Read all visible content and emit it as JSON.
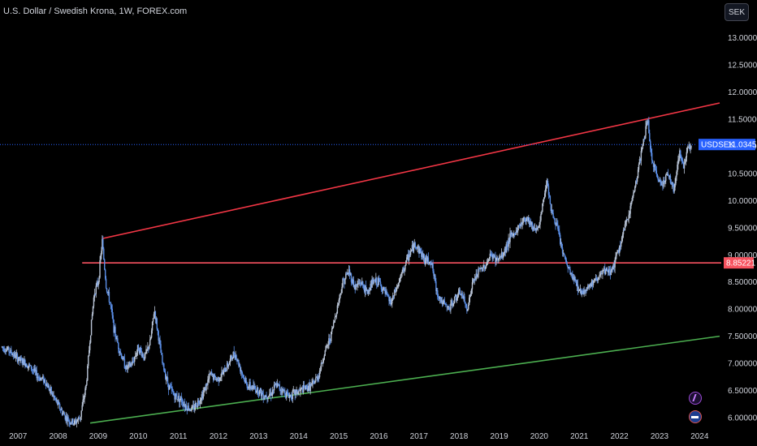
{
  "header": {
    "title": "U.S. Dollar / Swedish Krona, 1W, FOREX.com",
    "scale_label": "SEK"
  },
  "price_tags": {
    "symbol": "USDSEK",
    "last_price": "11.03451",
    "level": "8.85221"
  },
  "colors": {
    "background": "#000000",
    "candles": "#5b8fe8",
    "candles_alt": "#b9c4d6",
    "resistance_line": "#f23645",
    "horizontal_level": "#f7525f",
    "support_line": "#4caf50",
    "last_price_tag": "#2962ff",
    "level_tag": "#f7525f"
  },
  "icons": [
    "flash-icon",
    "flag-icon"
  ],
  "chart_data": {
    "type": "line",
    "title": "U.S. Dollar / Swedish Krona, 1W, FOREX.com",
    "xlabel": "",
    "ylabel": "",
    "x_ticks": [
      "2007",
      "2008",
      "2009",
      "2010",
      "2011",
      "2012",
      "2013",
      "2014",
      "2015",
      "2016",
      "2017",
      "2018",
      "2019",
      "2020",
      "2021",
      "2022",
      "2023",
      "2024"
    ],
    "y_ticks": [
      "13.00000",
      "12.50000",
      "12.00000",
      "11.50000",
      "11.00000",
      "10.50000",
      "10.00000",
      "9.50000",
      "9.00000",
      "8.50000",
      "8.00000",
      "7.50000",
      "7.00000",
      "6.50000",
      "6.00000"
    ],
    "xlim": [
      2006.55,
      2024.5
    ],
    "ylim": [
      5.85,
      13.25
    ],
    "grid": false,
    "series": [
      {
        "x": [
          2006.6,
          2006.75,
          2006.9,
          2007.05,
          2007.2,
          2007.35,
          2007.5,
          2007.65,
          2007.8,
          2007.95,
          2008.1,
          2008.25,
          2008.4,
          2008.55,
          2008.7,
          2008.8,
          2008.9,
          2009.0,
          2009.1,
          2009.2,
          2009.3,
          2009.4,
          2009.55,
          2009.7,
          2009.85,
          2010.0,
          2010.15,
          2010.3,
          2010.4,
          2010.5,
          2010.6,
          2010.75,
          2010.9,
          2011.05,
          2011.2,
          2011.35,
          2011.5,
          2011.65,
          2011.8,
          2011.95,
          2012.1,
          2012.25,
          2012.4,
          2012.55,
          2012.7,
          2012.85,
          2013.0,
          2013.15,
          2013.3,
          2013.45,
          2013.6,
          2013.75,
          2013.9,
          2014.05,
          2014.2,
          2014.35,
          2014.5,
          2014.65,
          2014.8,
          2014.95,
          2015.1,
          2015.25,
          2015.4,
          2015.55,
          2015.7,
          2015.85,
          2016.0,
          2016.15,
          2016.3,
          2016.45,
          2016.6,
          2016.75,
          2016.9,
          2017.0,
          2017.15,
          2017.3,
          2017.45,
          2017.6,
          2017.75,
          2017.9,
          2018.05,
          2018.2,
          2018.35,
          2018.5,
          2018.65,
          2018.8,
          2018.95,
          2019.1,
          2019.25,
          2019.4,
          2019.55,
          2019.7,
          2019.85,
          2020.0,
          2020.1,
          2020.2,
          2020.3,
          2020.45,
          2020.6,
          2020.75,
          2020.9,
          2021.05,
          2021.2,
          2021.35,
          2021.5,
          2021.65,
          2021.8,
          2021.95,
          2022.1,
          2022.25,
          2022.4,
          2022.55,
          2022.7,
          2022.8,
          2022.9,
          2023.05,
          2023.2,
          2023.35,
          2023.5,
          2023.6,
          2023.7,
          2023.8
        ],
        "values": [
          7.3,
          7.25,
          7.15,
          7.05,
          7.0,
          6.9,
          6.75,
          6.7,
          6.5,
          6.3,
          6.1,
          5.95,
          5.9,
          6.0,
          6.6,
          7.5,
          8.3,
          8.5,
          9.25,
          8.4,
          8.1,
          7.6,
          7.2,
          6.9,
          7.0,
          7.3,
          7.1,
          7.4,
          8.0,
          7.5,
          7.0,
          6.6,
          6.4,
          6.35,
          6.2,
          6.15,
          6.3,
          6.5,
          6.8,
          6.7,
          6.8,
          7.0,
          7.2,
          6.9,
          6.6,
          6.55,
          6.5,
          6.4,
          6.45,
          6.6,
          6.5,
          6.4,
          6.45,
          6.5,
          6.55,
          6.6,
          6.8,
          7.2,
          7.5,
          8.0,
          8.5,
          8.7,
          8.4,
          8.5,
          8.3,
          8.5,
          8.5,
          8.3,
          8.1,
          8.4,
          8.7,
          9.0,
          9.2,
          9.1,
          8.9,
          8.9,
          8.3,
          8.1,
          8.0,
          8.2,
          8.3,
          8.0,
          8.5,
          8.7,
          8.8,
          9.0,
          8.9,
          9.0,
          9.3,
          9.4,
          9.6,
          9.7,
          9.5,
          9.5,
          10.0,
          10.4,
          9.8,
          9.5,
          9.0,
          8.7,
          8.5,
          8.3,
          8.4,
          8.5,
          8.6,
          8.7,
          8.7,
          9.0,
          9.4,
          9.8,
          10.3,
          10.9,
          11.5,
          10.8,
          10.5,
          10.3,
          10.5,
          10.2,
          10.9,
          10.6,
          11.0,
          11.03
        ]
      }
    ],
    "annotations": [
      {
        "type": "trend-line",
        "from": [
          2009.1,
          9.3
        ],
        "to": [
          2024.5,
          11.8
        ]
      },
      {
        "type": "horizontal-line",
        "value": 8.85221,
        "from_x": 2008.6
      },
      {
        "type": "trend-line",
        "from": [
          2008.8,
          5.9
        ],
        "to": [
          2024.5,
          7.5
        ]
      },
      {
        "type": "horizontal-line",
        "value": 11.03451,
        "style": "dotted",
        "from_x": 2006.55
      }
    ]
  }
}
